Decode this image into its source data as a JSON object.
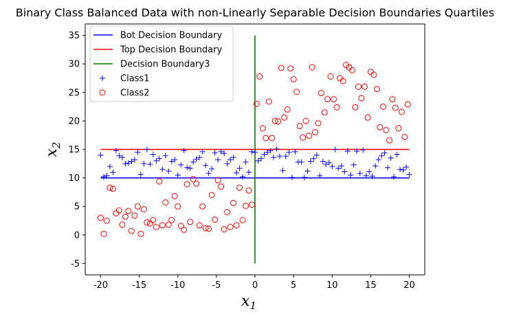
{
  "chart_data": {
    "type": "scatter",
    "title": "Binary Class Balanced Data with non-Linearly Separable Decision Boundaries Quartiles",
    "xlabel": "x",
    "xlabel_sub": "1",
    "ylabel": "x",
    "ylabel_sub": "2",
    "xlim": [
      -22,
      22
    ],
    "ylim": [
      -7,
      37
    ],
    "xticks": [
      -20,
      -15,
      -10,
      -5,
      0,
      5,
      10,
      15,
      20
    ],
    "yticks": [
      -5,
      0,
      5,
      10,
      15,
      20,
      25,
      30,
      35
    ],
    "grid": false,
    "legend_position": "top-left",
    "lines": [
      {
        "name": "Bot Decision Boundary",
        "color": "#0000ff",
        "x": [
          -20,
          20
        ],
        "y": [
          10,
          10
        ]
      },
      {
        "name": "Top Decision Boundary",
        "color": "#ff0000",
        "x": [
          -20,
          20
        ],
        "y": [
          15,
          15
        ]
      },
      {
        "name": "Decision Boundary3",
        "color": "#008000",
        "x": [
          0,
          0
        ],
        "y": [
          -5,
          35
        ]
      }
    ],
    "series": [
      {
        "name": "Class1",
        "marker": "plus",
        "color": "#0000ff",
        "points": [
          [
            -20,
            14
          ],
          [
            -19.6,
            10.2
          ],
          [
            -19.2,
            10.4
          ],
          [
            -18.8,
            12
          ],
          [
            -18.4,
            11
          ],
          [
            -18,
            14.8
          ],
          [
            -17.6,
            13.9
          ],
          [
            -17.2,
            13.6
          ],
          [
            -16.8,
            12.5
          ],
          [
            -16.4,
            12.6
          ],
          [
            -16,
            12.9
          ],
          [
            -15.6,
            13.2
          ],
          [
            -15.2,
            14.5
          ],
          [
            -14.8,
            10.6
          ],
          [
            -14.4,
            12.5
          ],
          [
            -14,
            15
          ],
          [
            -13.6,
            12.4
          ],
          [
            -13.2,
            14.1
          ],
          [
            -12.8,
            13
          ],
          [
            -12.4,
            13.4
          ],
          [
            -12,
            11.5
          ],
          [
            -11.6,
            13.9
          ],
          [
            -11.2,
            11.2
          ],
          [
            -10.8,
            12.9
          ],
          [
            -10.4,
            13.2
          ],
          [
            -10,
            10.5
          ],
          [
            -9.6,
            12.3
          ],
          [
            -9.2,
            14.8
          ],
          [
            -8.8,
            11.8
          ],
          [
            -8.4,
            11.7
          ],
          [
            -8,
            12.8
          ],
          [
            -7.6,
            13.3
          ],
          [
            -7.2,
            13.6
          ],
          [
            -6.8,
            14.6
          ],
          [
            -6.4,
            12.2
          ],
          [
            -6,
            10.8
          ],
          [
            -5.6,
            11.6
          ],
          [
            -5.2,
            14.4
          ],
          [
            -4.8,
            13.2
          ],
          [
            -4.4,
            14.6
          ],
          [
            -4,
            14.3
          ],
          [
            -3.6,
            12.5
          ],
          [
            -3.2,
            13.2
          ],
          [
            -2.8,
            13.6
          ],
          [
            -2.4,
            10.9
          ],
          [
            -2,
            11.7
          ],
          [
            -1.6,
            10.2
          ],
          [
            -1.2,
            12.8
          ],
          [
            -0.8,
            11
          ],
          [
            -0.4,
            14.6
          ],
          [
            0,
            14.5
          ],
          [
            0.4,
            13
          ],
          [
            0.8,
            13.4
          ],
          [
            1.2,
            14.1
          ],
          [
            1.6,
            14.5
          ],
          [
            2,
            14.8
          ],
          [
            2.4,
            13.6
          ],
          [
            2.8,
            15.1
          ],
          [
            3.2,
            13.8
          ],
          [
            3.6,
            11.3
          ],
          [
            4,
            13.8
          ],
          [
            4.4,
            14.5
          ],
          [
            4.8,
            10.1
          ],
          [
            5.2,
            14.6
          ],
          [
            5.6,
            12.8
          ],
          [
            6,
            12.8
          ],
          [
            6.4,
            10.1
          ],
          [
            6.8,
            11.2
          ],
          [
            7.2,
            12.9
          ],
          [
            7.6,
            13.4
          ],
          [
            8,
            14
          ],
          [
            8.4,
            10.4
          ],
          [
            8.8,
            12.9
          ],
          [
            9.2,
            12.4
          ],
          [
            9.6,
            12.7
          ],
          [
            10,
            12
          ],
          [
            10.4,
            15
          ],
          [
            10.8,
            11.7
          ],
          [
            11.2,
            12.1
          ],
          [
            11.6,
            11.1
          ],
          [
            12,
            14.7
          ],
          [
            12.4,
            10.5
          ],
          [
            12.8,
            12.3
          ],
          [
            13.2,
            14.7
          ],
          [
            13.6,
            10.8
          ],
          [
            14,
            14.9
          ],
          [
            14.4,
            10.4
          ],
          [
            14.8,
            11.1
          ],
          [
            15.2,
            10.3
          ],
          [
            15.6,
            12.1
          ],
          [
            16,
            13.2
          ],
          [
            16.4,
            13.9
          ],
          [
            16.8,
            14.4
          ],
          [
            17.2,
            11.8
          ],
          [
            17.6,
            13.5
          ],
          [
            18,
            10.2
          ],
          [
            18.4,
            14.1
          ],
          [
            18.8,
            11.5
          ],
          [
            19.2,
            11.4
          ],
          [
            19.6,
            11.9
          ],
          [
            20,
            10.6
          ]
        ]
      },
      {
        "name": "Class2",
        "marker": "circle",
        "color": "#ff0000",
        "points": [
          [
            -20,
            3
          ],
          [
            -19.6,
            0.2
          ],
          [
            -19.2,
            2.5
          ],
          [
            -18.8,
            8.3
          ],
          [
            -18.4,
            8.1
          ],
          [
            -18,
            3.8
          ],
          [
            -17.6,
            4.3
          ],
          [
            -17.2,
            1.8
          ],
          [
            -16.8,
            3.2
          ],
          [
            -16.4,
            4.2
          ],
          [
            -16,
            0.7
          ],
          [
            -15.6,
            3.4
          ],
          [
            -15.2,
            5
          ],
          [
            -14.8,
            0.2
          ],
          [
            -14.4,
            4.5
          ],
          [
            -14,
            2.2
          ],
          [
            -13.6,
            2
          ],
          [
            -13.2,
            2.6
          ],
          [
            -12.8,
            1.4
          ],
          [
            -12.4,
            9.4
          ],
          [
            -12,
            1.7
          ],
          [
            -11.6,
            5.7
          ],
          [
            -11.2,
            1.8
          ],
          [
            -10.8,
            2.6
          ],
          [
            -10.4,
            6.8
          ],
          [
            -10,
            5
          ],
          [
            -9.6,
            1.6
          ],
          [
            -9.2,
            0.9
          ],
          [
            -8.8,
            8.9
          ],
          [
            -8.4,
            2.3
          ],
          [
            -8,
            9.8
          ],
          [
            -7.6,
            9
          ],
          [
            -7.2,
            1.7
          ],
          [
            -6.8,
            5
          ],
          [
            -6.4,
            1.2
          ],
          [
            -6,
            1.1
          ],
          [
            -5.6,
            7
          ],
          [
            -5.2,
            2.7
          ],
          [
            -4.8,
            9.6
          ],
          [
            -4.4,
            8.5
          ],
          [
            -4,
            1
          ],
          [
            -3.6,
            4
          ],
          [
            -3.2,
            1.4
          ],
          [
            -2.8,
            5.6
          ],
          [
            -2.4,
            1.7
          ],
          [
            -2,
            8.3
          ],
          [
            -1.6,
            2.6
          ],
          [
            -1.2,
            5.1
          ],
          [
            -0.8,
            7.8
          ],
          [
            -0.4,
            5.3
          ],
          [
            0.2,
            23
          ],
          [
            0.6,
            27.8
          ],
          [
            1,
            18.7
          ],
          [
            1.4,
            17
          ],
          [
            1.8,
            23.4
          ],
          [
            2.2,
            17
          ],
          [
            2.6,
            20
          ],
          [
            3,
            19.9
          ],
          [
            3.4,
            29.3
          ],
          [
            3.8,
            20.6
          ],
          [
            4.2,
            22
          ],
          [
            4.6,
            29.2
          ],
          [
            5,
            27.3
          ],
          [
            5.4,
            25.1
          ],
          [
            5.8,
            19.1
          ],
          [
            6.2,
            17.1
          ],
          [
            6.6,
            20
          ],
          [
            7,
            17.4
          ],
          [
            7.4,
            29.4
          ],
          [
            7.8,
            18
          ],
          [
            8.2,
            19.6
          ],
          [
            8.6,
            24.9
          ],
          [
            9,
            21.5
          ],
          [
            9.4,
            23.8
          ],
          [
            9.8,
            27.8
          ],
          [
            10.2,
            23.8
          ],
          [
            10.6,
            22.4
          ],
          [
            11,
            27.5
          ],
          [
            11.4,
            27
          ],
          [
            11.8,
            29.8
          ],
          [
            12.2,
            29.4
          ],
          [
            12.6,
            28.9
          ],
          [
            13,
            22.4
          ],
          [
            13.4,
            26
          ],
          [
            13.8,
            24
          ],
          [
            14.2,
            26
          ],
          [
            14.6,
            20.6
          ],
          [
            15,
            28.6
          ],
          [
            15.4,
            28.1
          ],
          [
            15.8,
            25.6
          ],
          [
            16.2,
            18.9
          ],
          [
            16.6,
            22.5
          ],
          [
            17,
            18.4
          ],
          [
            17.4,
            16.6
          ],
          [
            17.8,
            23.8
          ],
          [
            18.2,
            22.3
          ],
          [
            18.6,
            18.7
          ],
          [
            19,
            21.6
          ],
          [
            19.4,
            17.2
          ],
          [
            19.8,
            22.9
          ]
        ]
      }
    ]
  }
}
